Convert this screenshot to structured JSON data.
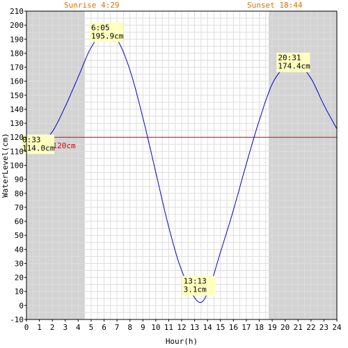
{
  "chart_data": {
    "type": "line",
    "title": "",
    "xlabel": "Hour(h)",
    "ylabel": "WaterLevel(cm)",
    "xlim": [
      0,
      24
    ],
    "ylim": [
      -10,
      210
    ],
    "x_ticks": [
      0,
      1,
      2,
      3,
      4,
      5,
      6,
      7,
      8,
      9,
      10,
      11,
      12,
      13,
      14,
      15,
      16,
      17,
      18,
      19,
      20,
      21,
      22,
      23,
      24
    ],
    "y_ticks": [
      -10,
      0,
      10,
      20,
      30,
      40,
      50,
      60,
      70,
      80,
      90,
      100,
      110,
      120,
      130,
      140,
      150,
      160,
      170,
      180,
      190,
      200,
      210
    ],
    "grid": true,
    "night_shading": [
      [
        0,
        4.48
      ],
      [
        18.73,
        24
      ]
    ],
    "sunrise_label": "Sunrise 4:29",
    "sunset_label": "Sunset 18:44",
    "average": {
      "value": 120,
      "label": "AVG 120cm",
      "color": "#e00000"
    },
    "series": [
      {
        "color": "#0000cc",
        "x": [
          0,
          0.55,
          1,
          2,
          3,
          4,
          5,
          6.08,
          7,
          8,
          9,
          10,
          11,
          12,
          13.22,
          14,
          15,
          16,
          17,
          18,
          19,
          20,
          20.52,
          21,
          22,
          23,
          24
        ],
        "y": [
          116,
          114,
          115,
          124,
          142,
          163,
          184,
          195.9,
          190,
          168,
          134,
          95,
          56,
          25,
          3.1,
          9,
          38,
          68,
          101,
          132,
          158,
          171,
          174.4,
          173,
          162,
          143,
          126
        ]
      }
    ],
    "annotations": [
      {
        "time": "0:33",
        "value": "114.0cm",
        "x": 0.55,
        "y": 114
      },
      {
        "time": "6:05",
        "value": "195.9cm",
        "x": 6.08,
        "y": 195.9
      },
      {
        "time": "13:13",
        "value": "3.1cm",
        "x": 13.22,
        "y": 3.1
      },
      {
        "time": "20:31",
        "value": "174.4cm",
        "x": 20.52,
        "y": 174.4
      }
    ],
    "colors": {
      "night": "#d3d3d3",
      "grid": "#dddddd",
      "annotation_bg": "#ffffc0",
      "sun_label": "#e07000"
    }
  }
}
